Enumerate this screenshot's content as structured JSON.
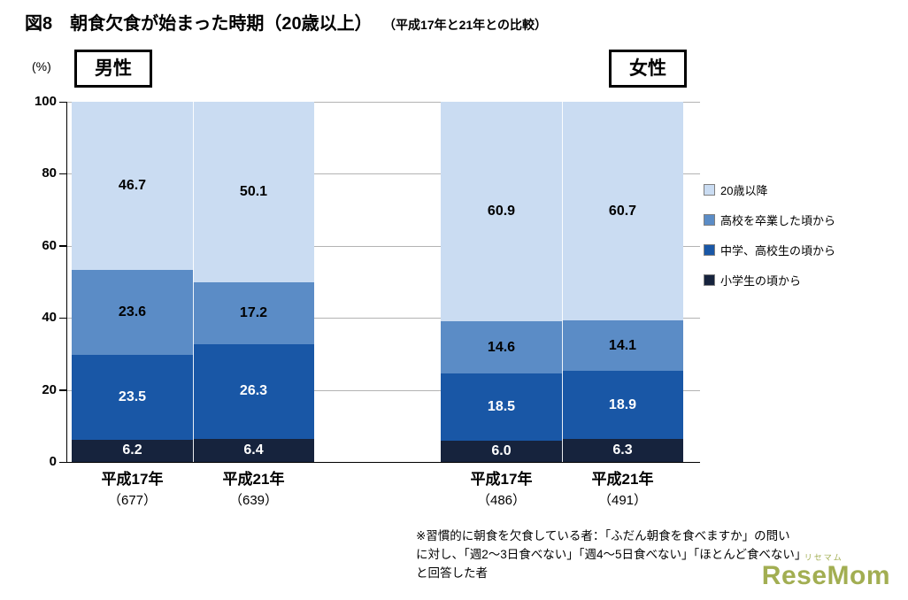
{
  "header": {
    "title": "図8　朝食欠食が始まった時期（20歳以上）",
    "subtitle": "（平成17年と21年との比較）"
  },
  "axis": {
    "unit_label": "(%)"
  },
  "groups": [
    {
      "label": "男性"
    },
    {
      "label": "女性"
    }
  ],
  "chart_data": {
    "type": "bar",
    "stacked": true,
    "title": "朝食欠食が始まった時期（20歳以上）",
    "xlabel": "",
    "ylabel": "(%)",
    "ylim": [
      0,
      100
    ],
    "yticks": [
      0,
      20,
      40,
      60,
      80,
      100
    ],
    "grid": true,
    "legend_position": "right",
    "categories": [
      {
        "group": "男性",
        "year": "平成17年",
        "n": "（677）"
      },
      {
        "group": "男性",
        "year": "平成21年",
        "n": "（639）"
      },
      {
        "group": "女性",
        "year": "平成17年",
        "n": "（486）"
      },
      {
        "group": "女性",
        "year": "平成21年",
        "n": "（491）"
      }
    ],
    "series": [
      {
        "name": "小学生の頃から",
        "color": "#16233d",
        "label_color": "#ffffff",
        "values": [
          6.2,
          6.4,
          6.0,
          6.3
        ]
      },
      {
        "name": "中学、高校生の頃から",
        "color": "#1957a6",
        "label_color": "#ffffff",
        "values": [
          23.5,
          26.3,
          18.5,
          18.9
        ]
      },
      {
        "name": "高校を卒業した頃から",
        "color": "#5b8cc6",
        "label_color": "#000000",
        "values": [
          23.6,
          17.2,
          14.6,
          14.1
        ]
      },
      {
        "name": "20歳以降",
        "color": "#cadcf2",
        "label_color": "#000000",
        "values": [
          46.7,
          50.1,
          60.9,
          60.7
        ]
      }
    ],
    "legend": [
      "20歳以降",
      "高校を卒業した頃から",
      "中学、高校生の頃から",
      "小学生の頃から"
    ]
  },
  "footnote": {
    "lines": [
      "※習慣的に朝食を欠食している者：「ふだん朝食を食べますか」の問い",
      "に対し、「週2～3日食べない」「週4～5日食べない」「ほとんど食べない」",
      "と回答した者"
    ]
  },
  "logo": {
    "main": "ReseMom",
    "sub": "リセマム"
  }
}
